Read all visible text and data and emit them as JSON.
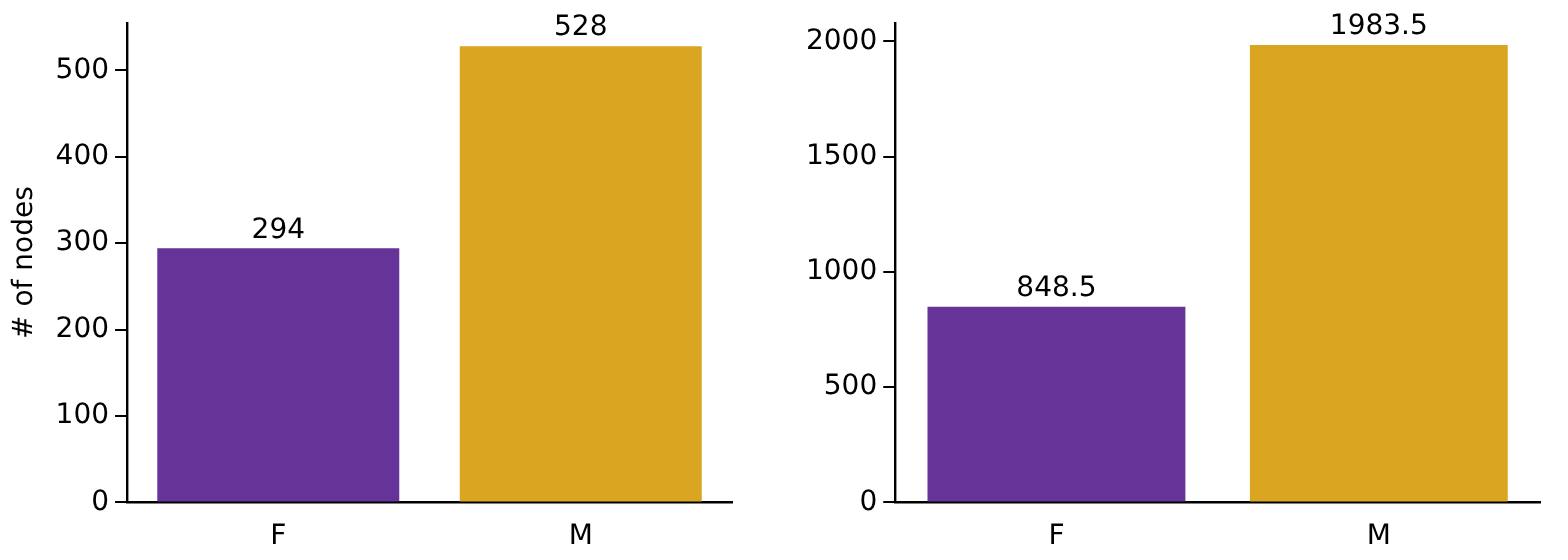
{
  "chart_data": [
    {
      "type": "bar",
      "ylabel": "# of nodes",
      "categories": [
        "F",
        "M"
      ],
      "values": [
        294,
        528
      ],
      "colors": [
        "#663399",
        "#daa520"
      ],
      "ylim": [
        0,
        555
      ],
      "yticks": [
        0,
        100,
        200,
        300,
        400,
        500
      ],
      "data_labels": true,
      "grid": false,
      "legend": false
    },
    {
      "type": "bar",
      "categories": [
        "F",
        "M"
      ],
      "values": [
        848.5,
        1983.5
      ],
      "colors": [
        "#663399",
        "#daa520"
      ],
      "ylim": [
        0,
        2080
      ],
      "yticks": [
        0,
        500,
        1000,
        1500,
        2000
      ],
      "data_labels": true,
      "grid": false,
      "legend": false
    }
  ]
}
